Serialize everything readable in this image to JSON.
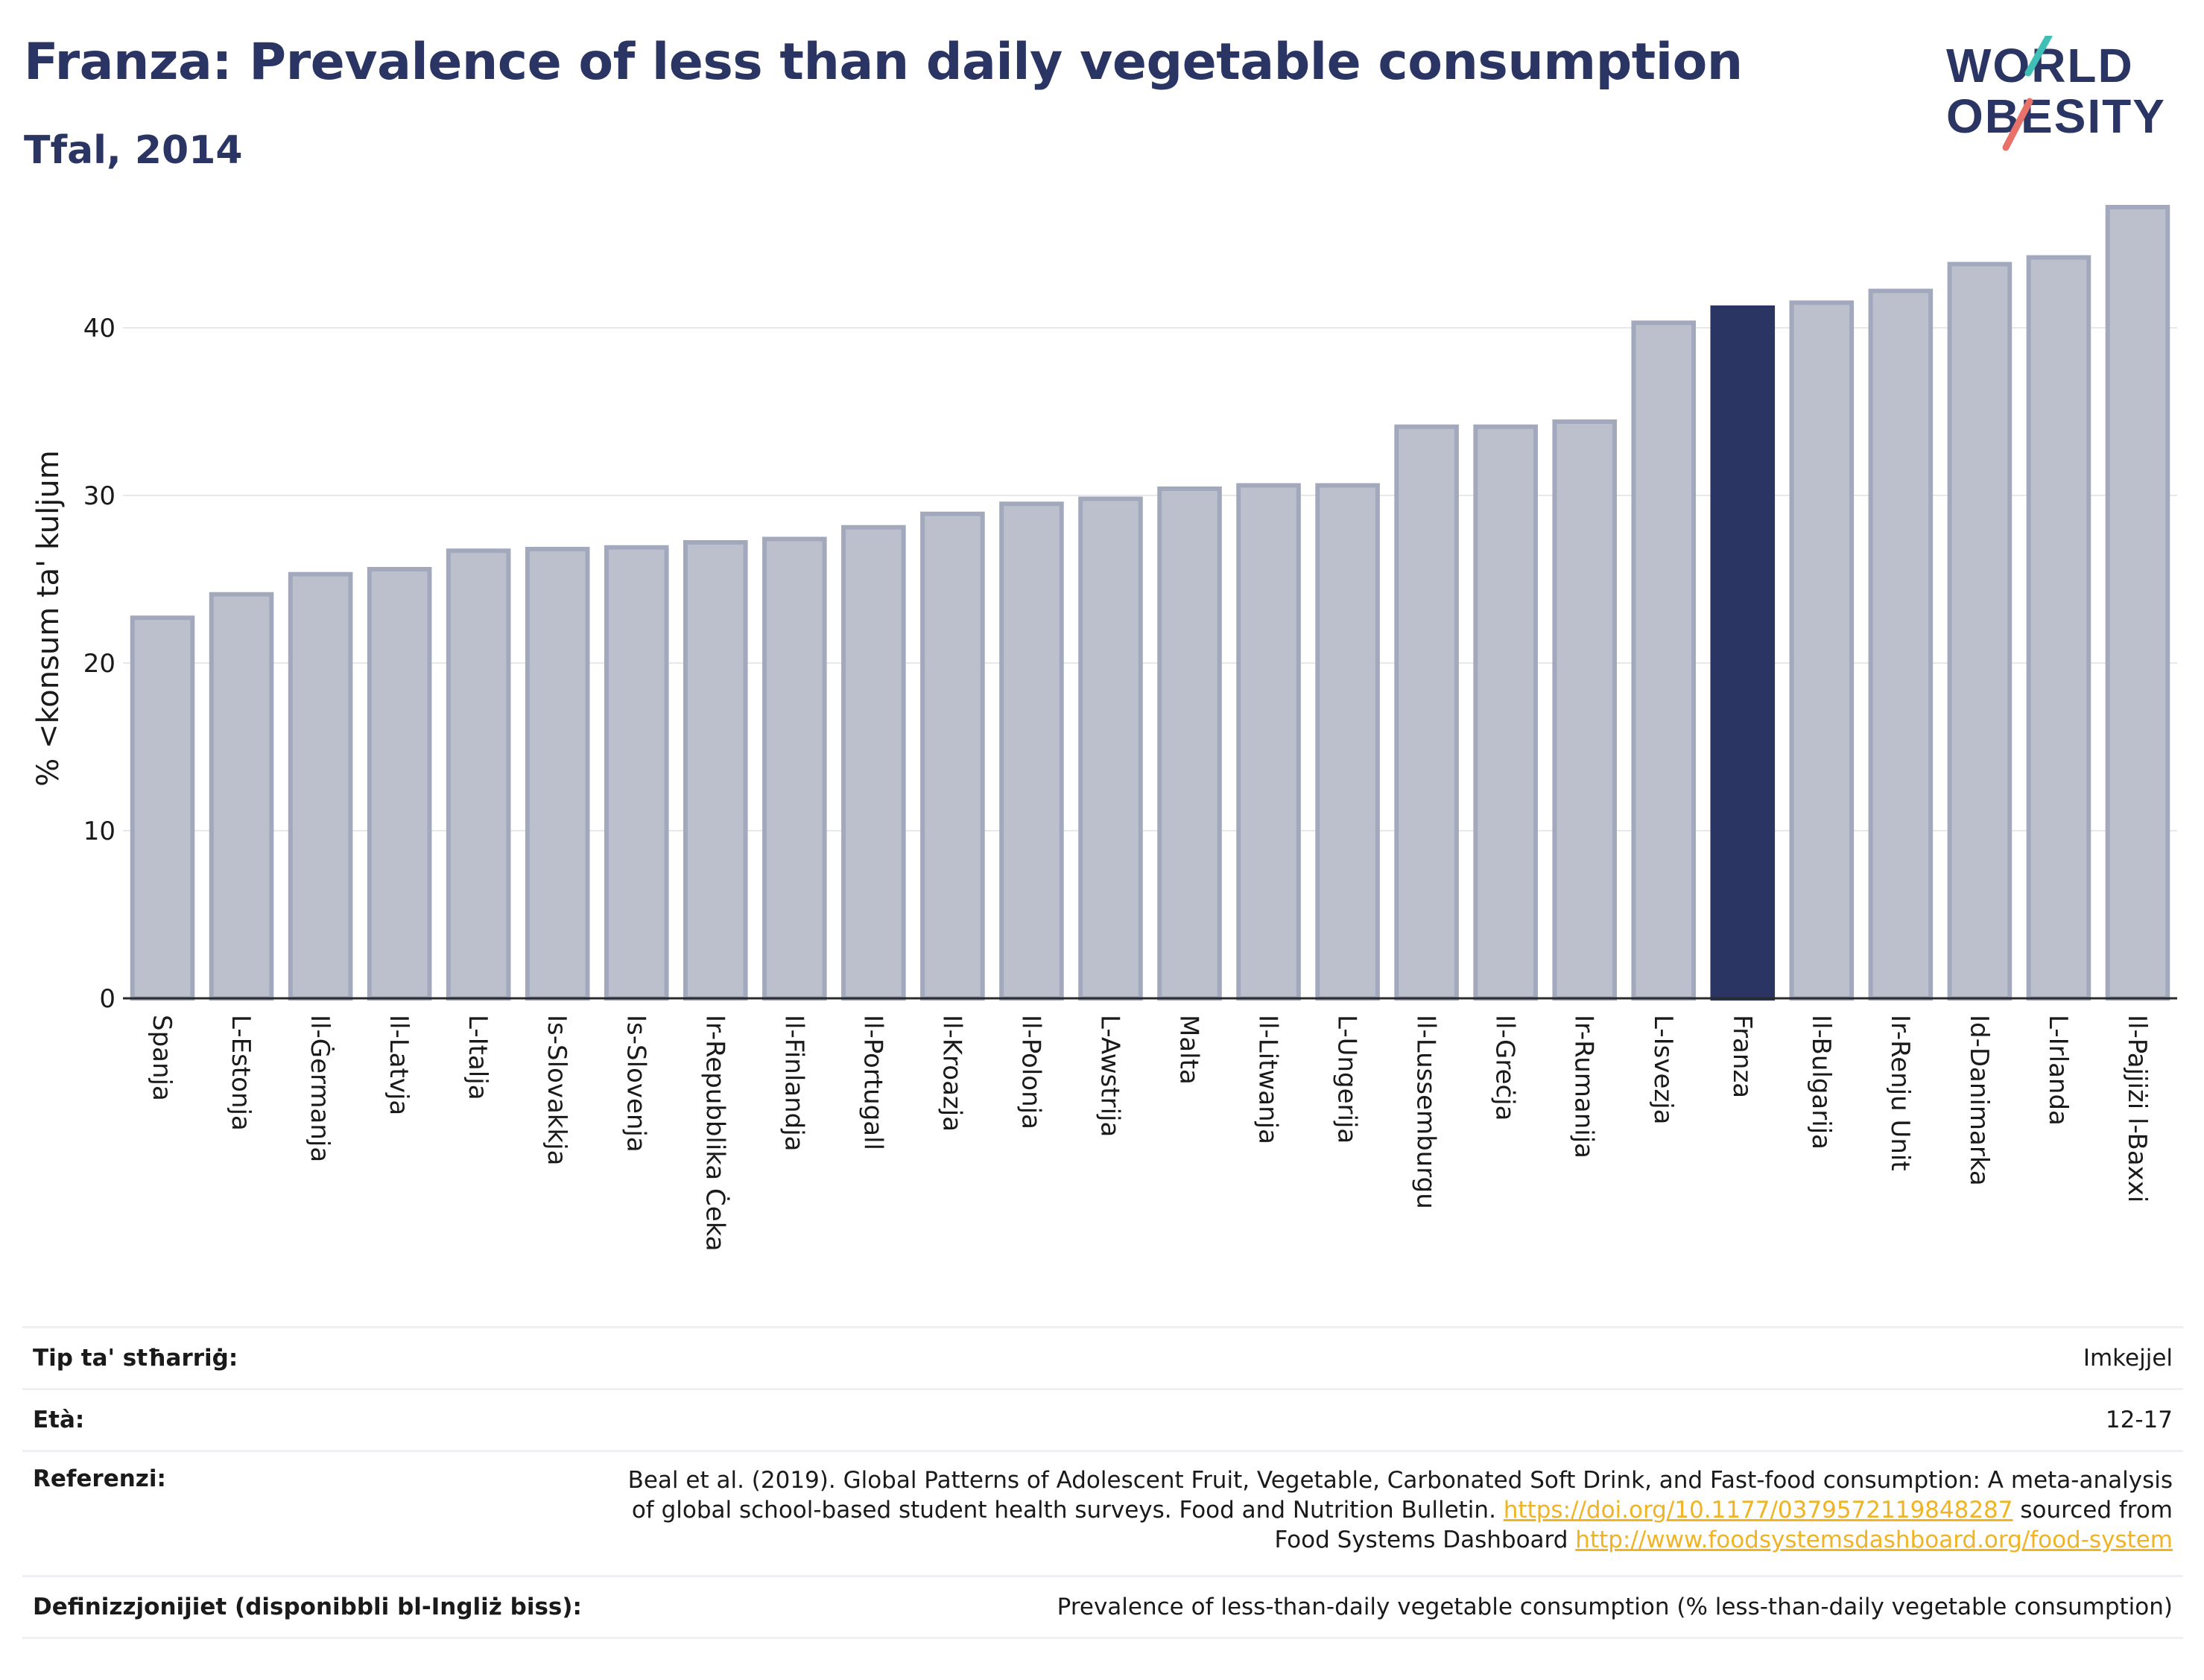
{
  "header": {
    "title": "Franza: Prevalence of less than daily vegetable consumption",
    "subtitle": "Tfal, 2014"
  },
  "logo": {
    "line1": "WORLD",
    "line2": "OBESITY",
    "colors": {
      "text": "#2b3563",
      "slash_red": "#e8716a",
      "slash_teal": "#3fbfb5"
    }
  },
  "chart_data": {
    "type": "bar",
    "ylabel": "% <konsum ta' kuljum",
    "xlabel": "",
    "ylim": [
      0,
      48
    ],
    "yticks": [
      0,
      10,
      20,
      30,
      40
    ],
    "grid": true,
    "highlight": "Franza",
    "colors": {
      "bar": "#bcc0cd",
      "bar_border": "#a3a9bd",
      "highlight": "#2b3563",
      "grid": "#e6e8ee",
      "axis": "#2b2b2b"
    },
    "categories": [
      "Spanja",
      "L-Estonja",
      "Il-Ġermanja",
      "Il-Latvja",
      "L-Italja",
      "Is-Slovakkja",
      "Is-Slovenja",
      "Ir-Repubblika Ċeka",
      "Il-Finlandja",
      "Il-Portugall",
      "Il-Kroazja",
      "Il-Polonja",
      "L-Awstrija",
      "Malta",
      "Il-Litwanja",
      "L-Ungerija",
      "Il-Lussemburgu",
      "Il-Greċja",
      "Ir-Rumanija",
      "L-Isvezja",
      "Franza",
      "Il-Bulgarija",
      "Ir-Renju Unit",
      "Id-Danimarka",
      "L-Irlanda",
      "Il-Pajjiżi l-Baxxi"
    ],
    "values": [
      22.7,
      24.1,
      25.3,
      25.6,
      26.7,
      26.8,
      26.9,
      27.2,
      27.4,
      28.1,
      28.9,
      29.5,
      29.8,
      30.4,
      30.6,
      30.6,
      34.1,
      34.1,
      34.4,
      40.3,
      41.2,
      41.5,
      42.2,
      43.8,
      44.2,
      47.2
    ]
  },
  "meta": {
    "survey_type_label": "Tip ta' stħarriġ:",
    "survey_type_value": "Imkejjel",
    "age_label": "Età:",
    "age_value": "12-17",
    "references_label": "Referenzi:",
    "references_text": "Beal et al. (2019). Global Patterns of Adolescent Fruit, Vegetable, Carbonated Soft Drink, and Fast-food consumption: A meta-analysis of global school-based student health surveys. Food and Nutrition Bulletin.",
    "references_link1": "https://doi.org/10.1177/0379572119848287",
    "references_mid": "sourced from Food Systems Dashboard",
    "references_link2": "http://www.foodsystemsdashboard.org/food-system",
    "definitions_label": "Definizzjonijiet (disponibbli bl-Ingliż biss):",
    "definitions_value": "Prevalence of less-than-daily vegetable consumption (% less-than-daily vegetable consumption)"
  }
}
